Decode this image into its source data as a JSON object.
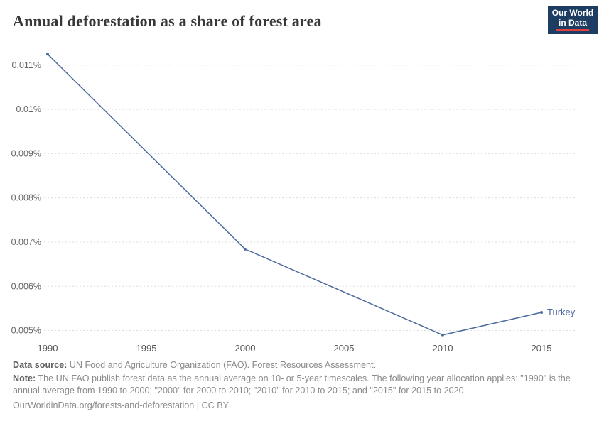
{
  "header": {
    "title": "Annual deforestation as a share of forest area",
    "logo": {
      "line1": "Our World",
      "line2": "in Data"
    }
  },
  "chart_data": {
    "type": "line",
    "title": "Annual deforestation as a share of forest area",
    "entity": "Turkey",
    "unit": "% of forest area",
    "series": [
      {
        "name": "Turkey",
        "x": [
          1990,
          2000,
          2010,
          2015
        ],
        "values": [
          0.01125,
          0.00684,
          0.0049,
          0.00541
        ]
      }
    ],
    "x_ticks": [
      1990,
      1995,
      2000,
      2005,
      2010,
      2015
    ],
    "y_ticks": [
      {
        "value": 0.011,
        "label": "0.011%"
      },
      {
        "value": 0.01,
        "label": "0.01%"
      },
      {
        "value": 0.009,
        "label": "0.009%"
      },
      {
        "value": 0.008,
        "label": "0.008%"
      },
      {
        "value": 0.007,
        "label": "0.007%"
      },
      {
        "value": 0.006,
        "label": "0.006%"
      },
      {
        "value": 0.005,
        "label": "0.005%"
      }
    ],
    "xlim": [
      1990,
      2015
    ],
    "ylim": [
      0.0048,
      0.01135
    ],
    "grid": "horizontal-dashed",
    "legend_position": "end-of-line",
    "line_color": "#4c6a9c",
    "grid_color": "#dcdcdc",
    "tick_color": "#666666"
  },
  "footer": {
    "source_label": "Data source:",
    "source_text": " UN Food and Agriculture Organization (FAO). Forest Resources Assessment.",
    "note_label": "Note:",
    "note_text": " The UN FAO publish forest data as the annual average on 10- or 5-year timescales. The following year allocation applies: \"1990\" is the annual average from 1990 to 2000; \"2000\" for 2000 to 2010; \"2010\" for 2010 to 2015; and \"2015\" for 2015 to 2020.",
    "license": "OurWorldinData.org/forests-and-deforestation | CC BY"
  }
}
